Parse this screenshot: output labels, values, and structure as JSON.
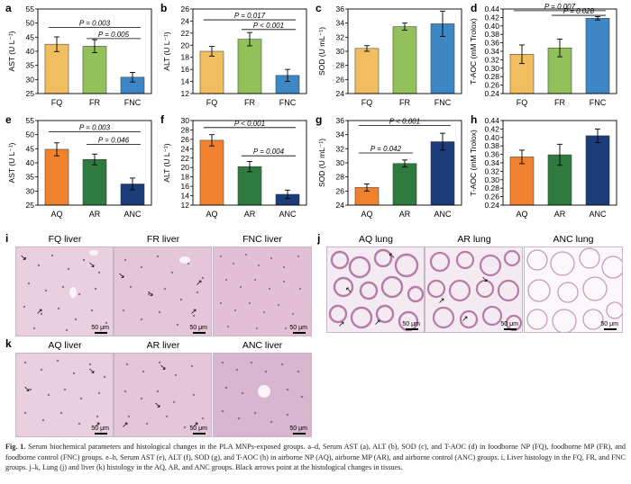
{
  "figure": {
    "panel_labels": [
      "a",
      "b",
      "c",
      "d",
      "e",
      "f",
      "g",
      "h",
      "i",
      "j",
      "k"
    ],
    "caption": {
      "lead_bold": "Fig. 1.",
      "text": " Serum biochemical parameters and histological changes in the PLA MNPs-exposed groups. a–d, Serum AST (a), ALT (b), SOD (c), and T-AOC (d) in foodborne NP (FQ), foodborne MP (FR), and foodborne control (FNC) groups. e–h, Serum AST (e), ALT (f), SOD (g), and T-AOC (h) in airborne NP (AQ), airborne MP (AR), and airborne control (ANC) groups. i, Liver histology in the FQ, FR, and FNC groups. j–k, Lung (j) and liver (k) histology in the AQ, AR, and ANC groups. Black arrows point at the histological changes in tissues."
    }
  },
  "chart_data": [
    {
      "id": "a",
      "type": "bar",
      "categories": [
        "FQ",
        "FR",
        "FNC"
      ],
      "values": [
        42.5,
        41.8,
        30.8
      ],
      "errors": [
        2.6,
        2.3,
        1.7
      ],
      "colors": [
        "#f0be5f",
        "#92c05a",
        "#3d88c4"
      ],
      "ylabel": "AST (U L⁻¹)",
      "ylim": [
        25,
        55
      ],
      "yticks": [
        25,
        30,
        35,
        40,
        45,
        50,
        55
      ],
      "annotations": [
        {
          "text": "P = 0.003",
          "from": 0,
          "to": 2,
          "y": 48.5
        },
        {
          "text": "P = 0.005",
          "from": 1,
          "to": 2,
          "y": 44.5
        }
      ]
    },
    {
      "id": "b",
      "type": "bar",
      "categories": [
        "FQ",
        "FR",
        "FNC"
      ],
      "values": [
        19.0,
        21.0,
        15.0
      ],
      "errors": [
        0.8,
        1.1,
        1.0
      ],
      "colors": [
        "#f0be5f",
        "#92c05a",
        "#3d88c4"
      ],
      "ylabel": "ALT (U L⁻¹)",
      "ylim": [
        12,
        26
      ],
      "yticks": [
        12,
        14,
        16,
        18,
        20,
        22,
        24,
        26
      ],
      "annotations": [
        {
          "text": "P = 0.017",
          "from": 0,
          "to": 2,
          "y": 24.2
        },
        {
          "text": "P < 0.001",
          "from": 1,
          "to": 2,
          "y": 22.6
        }
      ]
    },
    {
      "id": "c",
      "type": "bar",
      "categories": [
        "FQ",
        "FR",
        "FNC"
      ],
      "values": [
        30.4,
        33.5,
        33.9
      ],
      "errors": [
        0.4,
        0.5,
        1.8
      ],
      "colors": [
        "#f0be5f",
        "#92c05a",
        "#3d88c4"
      ],
      "ylabel": "SOD (U mL⁻¹)",
      "ylim": [
        24,
        36
      ],
      "yticks": [
        24,
        26,
        28,
        30,
        32,
        34,
        36
      ],
      "annotations": []
    },
    {
      "id": "d",
      "type": "bar",
      "categories": [
        "FQ",
        "FR",
        "FNC"
      ],
      "values": [
        0.333,
        0.348,
        0.418
      ],
      "errors": [
        0.022,
        0.021,
        0.004
      ],
      "colors": [
        "#f0be5f",
        "#92c05a",
        "#3d88c4"
      ],
      "ylabel": "T-AOC (mM Trolox)",
      "ylim": [
        0.24,
        0.44
      ],
      "yticks": [
        0.24,
        0.26,
        0.28,
        0.3,
        0.32,
        0.34,
        0.36,
        0.38,
        0.4,
        0.42,
        0.44
      ],
      "decimals": 2,
      "annotations": [
        {
          "text": "P = 0.007",
          "from": 0,
          "to": 2,
          "y": 0.436
        },
        {
          "text": "P = 0.028",
          "from": 1,
          "to": 2,
          "y": 0.425
        }
      ]
    },
    {
      "id": "e",
      "type": "bar",
      "categories": [
        "AQ",
        "AR",
        "ANC"
      ],
      "values": [
        44.8,
        41.2,
        32.5
      ],
      "errors": [
        2.3,
        1.9,
        2.1
      ],
      "colors": [
        "#f0812f",
        "#2f7a3f",
        "#1c3d7a"
      ],
      "ylabel": "AST (U L⁻¹)",
      "ylim": [
        25,
        55
      ],
      "yticks": [
        25,
        30,
        35,
        40,
        45,
        50,
        55
      ],
      "annotations": [
        {
          "text": "P = 0.003",
          "from": 0,
          "to": 2,
          "y": 51.0
        },
        {
          "text": "P = 0.046",
          "from": 1,
          "to": 2,
          "y": 46.5
        }
      ]
    },
    {
      "id": "f",
      "type": "bar",
      "categories": [
        "AQ",
        "AR",
        "ANC"
      ],
      "values": [
        25.8,
        20.2,
        14.3
      ],
      "errors": [
        1.2,
        1.1,
        0.9
      ],
      "colors": [
        "#f0812f",
        "#2f7a3f",
        "#1c3d7a"
      ],
      "ylabel": "ALT (U L⁻¹)",
      "ylim": [
        12,
        30
      ],
      "yticks": [
        12,
        14,
        16,
        18,
        20,
        22,
        24,
        26,
        28,
        30
      ],
      "annotations": [
        {
          "text": "P < 0.001",
          "from": 0,
          "to": 2,
          "y": 28.5
        },
        {
          "text": "P = 0.004",
          "from": 1,
          "to": 2,
          "y": 22.5
        }
      ]
    },
    {
      "id": "g",
      "type": "bar",
      "categories": [
        "AQ",
        "AR",
        "ANC"
      ],
      "values": [
        26.5,
        29.9,
        33.0
      ],
      "errors": [
        0.5,
        0.5,
        1.2
      ],
      "colors": [
        "#f0812f",
        "#2f7a3f",
        "#1c3d7a"
      ],
      "ylabel": "SOD (U mL⁻¹)",
      "ylim": [
        24,
        36
      ],
      "yticks": [
        24,
        26,
        28,
        30,
        32,
        34,
        36
      ],
      "annotations": [
        {
          "text": "P < 0.001",
          "from": 0,
          "to": 2,
          "y": 35.3
        },
        {
          "text": "P = 0.042",
          "from": 0,
          "to": 1,
          "y": 31.4
        }
      ]
    },
    {
      "id": "h",
      "type": "bar",
      "categories": [
        "AQ",
        "AR",
        "ANC"
      ],
      "values": [
        0.354,
        0.359,
        0.404
      ],
      "errors": [
        0.016,
        0.025,
        0.016
      ],
      "colors": [
        "#f0812f",
        "#2f7a3f",
        "#1c3d7a"
      ],
      "ylabel": "T-AOC (mM Trolox)",
      "ylim": [
        0.24,
        0.44
      ],
      "yticks": [
        0.24,
        0.26,
        0.28,
        0.3,
        0.32,
        0.34,
        0.36,
        0.38,
        0.4,
        0.42,
        0.44
      ],
      "decimals": 2,
      "annotations": []
    }
  ],
  "histology": {
    "i": {
      "titles": [
        "FQ liver",
        "FR liver",
        "FNC liver"
      ],
      "scale": "50 μm"
    },
    "j": {
      "titles": [
        "AQ lung",
        "AR lung",
        "ANC lung"
      ],
      "scale": "50 μm"
    },
    "k": {
      "titles": [
        "AQ liver",
        "AR liver",
        "ANC liver"
      ],
      "scale": "50 μm"
    }
  }
}
